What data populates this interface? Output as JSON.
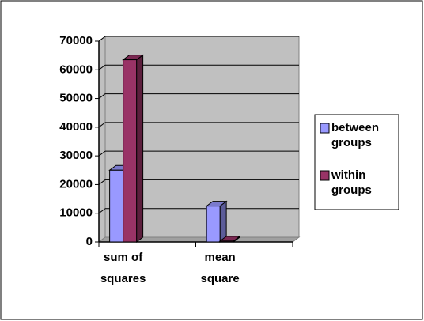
{
  "chart_data": {
    "type": "bar3d",
    "categories": [
      "sum of squares",
      "mean square"
    ],
    "series": [
      {
        "name": "between groups",
        "color": "#9999ff",
        "values": [
          25000,
          12500
        ]
      },
      {
        "name": "within groups",
        "color": "#993366",
        "values": [
          63500,
          300
        ]
      }
    ],
    "ylim": [
      0,
      70000
    ],
    "yticks": [
      0,
      10000,
      20000,
      30000,
      40000,
      50000,
      60000,
      70000
    ],
    "grid": true,
    "legend": "right"
  }
}
